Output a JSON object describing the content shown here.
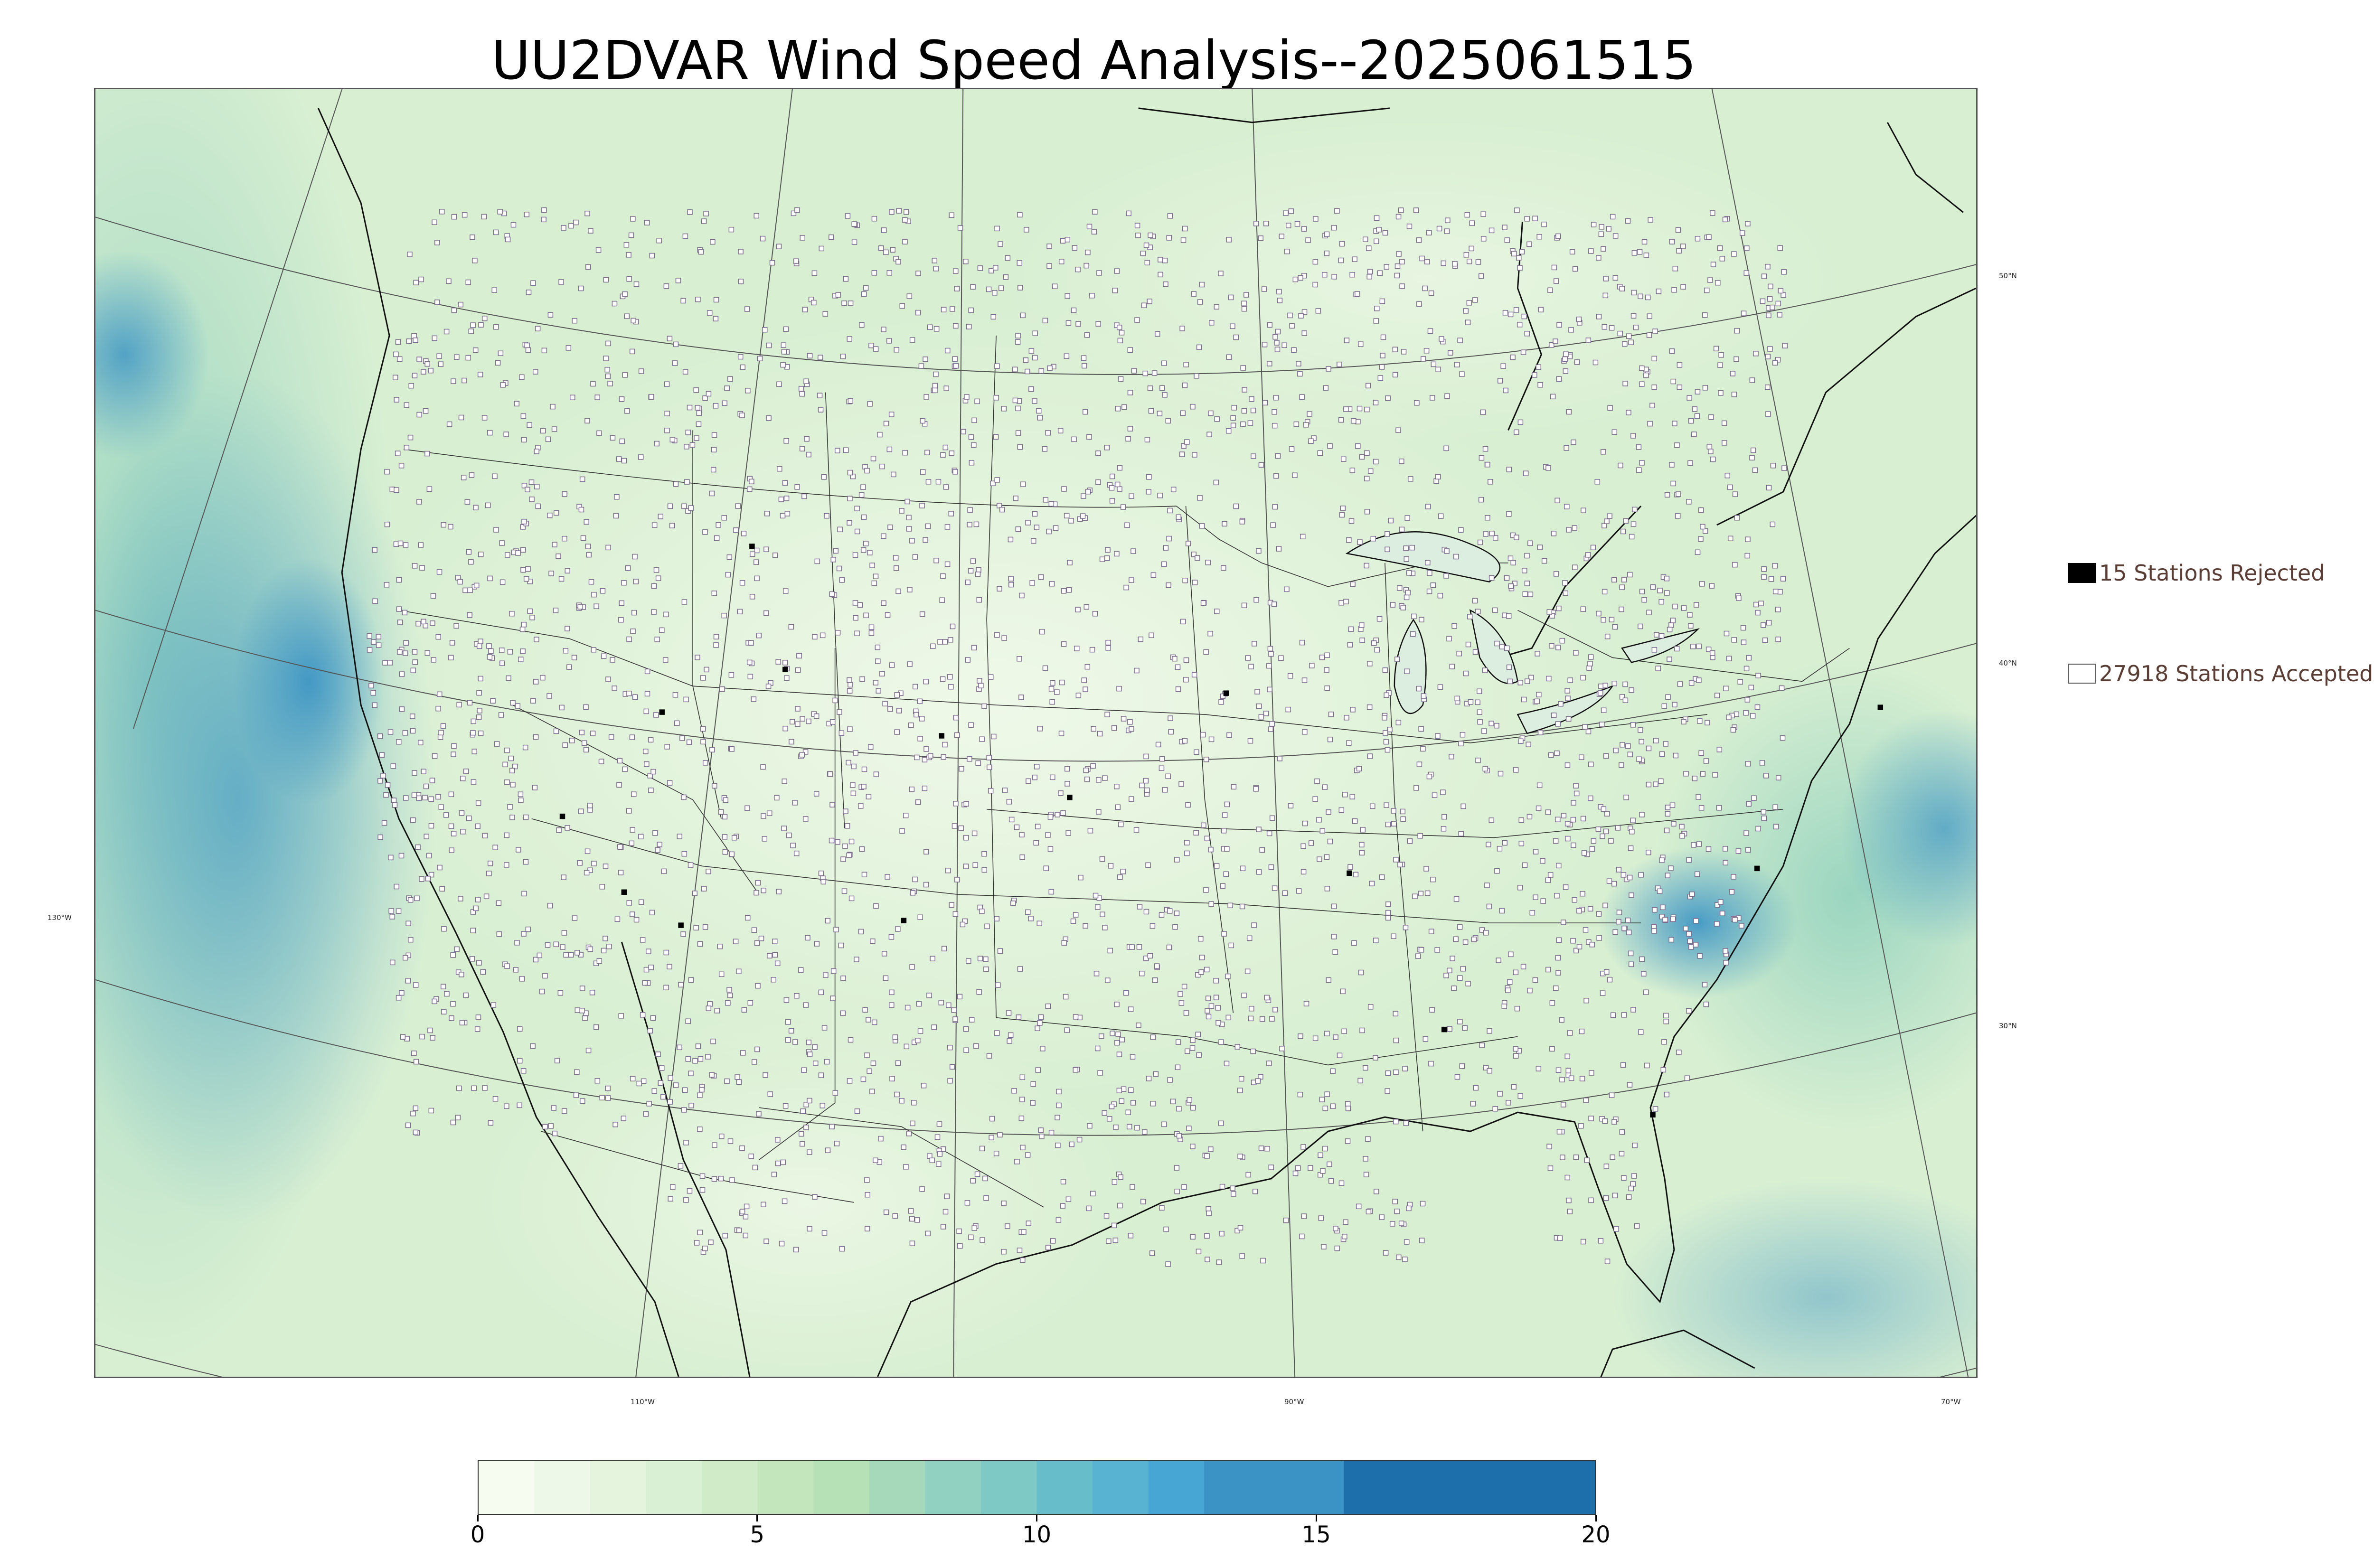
{
  "title": "UU2DVAR Wind Speed Analysis--2025061515",
  "map": {
    "type": "wind-speed-analysis",
    "projection": "lambert-conformal",
    "lon_labels": [
      "130°W",
      "110°W",
      "90°W",
      "70°W"
    ],
    "lat_labels": [
      "50°N",
      "40°N",
      "30°N"
    ],
    "station_marker_color_accepted": "#7a6a8a",
    "station_marker_color_rejected": "#000000"
  },
  "legend": {
    "rejected": {
      "label": "15 Stations Rejected",
      "swatch_color": "#000000",
      "icon": "filled-square-icon"
    },
    "accepted": {
      "label": "27918 Stations Accepted",
      "swatch_color": "#ffffff",
      "icon": "open-square-icon"
    }
  },
  "colorbar": {
    "min": 0,
    "max": 20,
    "tick_labels": [
      "0",
      "5",
      "10",
      "15",
      "20"
    ],
    "levels": [
      0,
      1,
      2,
      3,
      4,
      5,
      6,
      7,
      8,
      9,
      10,
      11,
      12,
      13,
      15.5,
      20
    ],
    "colors": [
      "#f7fcf0",
      "#eef8e8",
      "#e4f4dd",
      "#daf0d4",
      "#cfebc7",
      "#c4e6bc",
      "#b6e0b5",
      "#a5d9b9",
      "#91d1c1",
      "#7ec8c6",
      "#68bdcb",
      "#58b2d2",
      "#48a6d4",
      "#3a93c4",
      "#1d6fab"
    ]
  }
}
